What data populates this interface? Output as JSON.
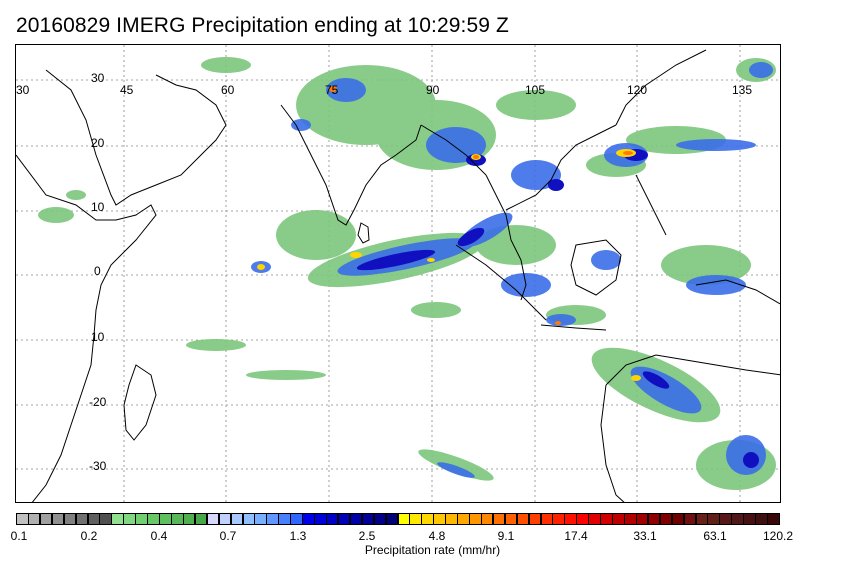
{
  "title": "20160829 IMERG Precipitation ending at 10:29:59 Z",
  "lon_labels": [
    "30",
    "45",
    "60",
    "75",
    "90",
    "105",
    "120",
    "135"
  ],
  "lat_labels": [
    "30",
    "20",
    "10",
    "0",
    "10",
    "-20",
    "-30"
  ],
  "colorbar": {
    "label": "Precipitation rate (mm/hr)",
    "ticks": [
      "0.1",
      "0.2",
      "0.4",
      "0.7",
      "1.3",
      "2.5",
      "4.8",
      "9.1",
      "17.4",
      "33.1",
      "63.1",
      "120.2"
    ],
    "colors": [
      "#c0c0c0",
      "#b0b0b0",
      "#a0a0a0",
      "#909090",
      "#808080",
      "#707070",
      "#606060",
      "#505050",
      "#90e090",
      "#80d880",
      "#70d070",
      "#68c868",
      "#60c060",
      "#58b858",
      "#50b050",
      "#48a848",
      "#d8d8ff",
      "#c0d0ff",
      "#a8c8ff",
      "#90c0ff",
      "#78b0ff",
      "#6098ff",
      "#4880ff",
      "#3068ff",
      "#0000e8",
      "#0000d8",
      "#0000c8",
      "#0000b8",
      "#0000a8",
      "#000098",
      "#000088",
      "#000078",
      "#ffff00",
      "#ffe800",
      "#ffd800",
      "#ffc800",
      "#ffb800",
      "#ffa800",
      "#ff9800",
      "#ff8800",
      "#ff7000",
      "#ff6000",
      "#ff5000",
      "#ff4000",
      "#ff3000",
      "#ff2000",
      "#ff1000",
      "#ff0000",
      "#e00000",
      "#d00000",
      "#c00000",
      "#b00000",
      "#a00000",
      "#900000",
      "#800000",
      "#700000",
      "#701010",
      "#682018",
      "#602018",
      "#581818",
      "#501818",
      "#481010",
      "#401010",
      "#380808"
    ]
  },
  "colors": {
    "rain_green": "#7cc67c",
    "rain_blue": "#3a6ee8",
    "rain_dark_blue": "#1010c0",
    "rain_yellow": "#ffd400",
    "rain_orange": "#ff7a00",
    "rain_red": "#e01010"
  }
}
